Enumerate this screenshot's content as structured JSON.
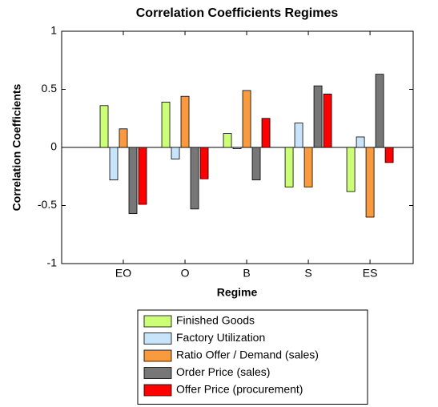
{
  "chart_data": {
    "type": "bar",
    "title": "Correlation Coefficients Regimes",
    "x_label": "Regime",
    "y_label": "Correlation Coefficients",
    "categories": [
      "EO",
      "O",
      "B",
      "S",
      "ES"
    ],
    "series": [
      {
        "name": "Finished Goods",
        "color": "#ccff77",
        "values": [
          0.36,
          0.39,
          0.12,
          -0.34,
          -0.38
        ]
      },
      {
        "name": "Factory Utilization",
        "color": "#c8e4fb",
        "values": [
          -0.28,
          -0.1,
          -0.01,
          0.21,
          0.09
        ]
      },
      {
        "name": "Ratio Offer / Demand (sales)",
        "color": "#f99a3f",
        "values": [
          0.16,
          0.44,
          0.49,
          -0.34,
          -0.6
        ]
      },
      {
        "name": "Order Price (sales)",
        "color": "#777777",
        "values": [
          -0.57,
          -0.53,
          -0.28,
          0.53,
          0.63
        ]
      },
      {
        "name": "Offer Price (procurement)",
        "color": "#ff0000",
        "values": [
          -0.49,
          -0.27,
          0.25,
          0.46,
          -0.13
        ]
      }
    ],
    "ylim": [
      -1,
      1
    ],
    "yticks": [
      1,
      0.5,
      0,
      -0.5,
      -1
    ],
    "legend": "below"
  }
}
